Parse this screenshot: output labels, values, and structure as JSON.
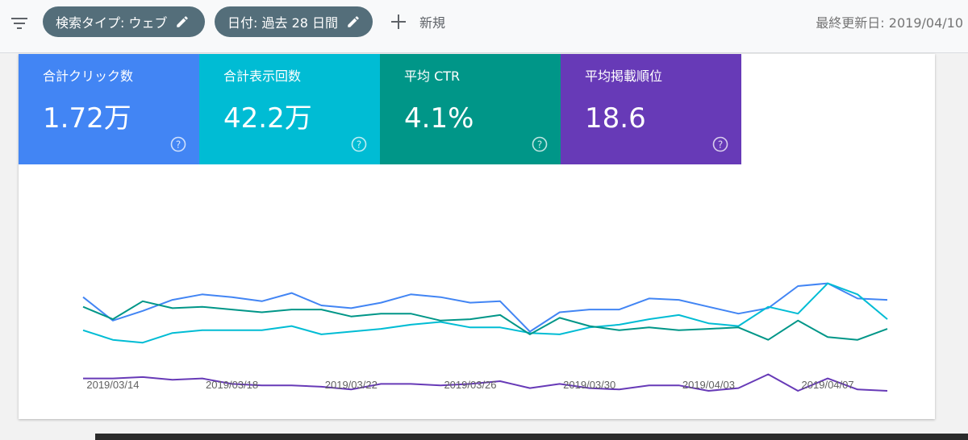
{
  "toolbar": {
    "filter_icon": "filter-list-icon",
    "chip_search_type": "検索タイプ: ウェブ",
    "chip_date": "日付: 過去 28 日間",
    "new_label": "新規",
    "last_updated": "最終更新日: 2019/04/10"
  },
  "metrics": [
    {
      "label": "合計クリック数",
      "value": "1.72万",
      "color": "#4285f4"
    },
    {
      "label": "合計表示回数",
      "value": "42.2万",
      "color": "#00bcd4"
    },
    {
      "label": "平均 CTR",
      "value": "4.1%",
      "color": "#009688"
    },
    {
      "label": "平均掲載順位",
      "value": "18.6",
      "color": "#673ab7"
    }
  ],
  "chart_data": {
    "type": "line",
    "x": [
      "2019/03/13",
      "2019/03/14",
      "2019/03/15",
      "2019/03/16",
      "2019/03/17",
      "2019/03/18",
      "2019/03/19",
      "2019/03/20",
      "2019/03/21",
      "2019/03/22",
      "2019/03/23",
      "2019/03/24",
      "2019/03/25",
      "2019/03/26",
      "2019/03/27",
      "2019/03/28",
      "2019/03/29",
      "2019/03/30",
      "2019/03/31",
      "2019/04/01",
      "2019/04/02",
      "2019/04/03",
      "2019/04/04",
      "2019/04/05",
      "2019/04/06",
      "2019/04/07",
      "2019/04/08",
      "2019/04/09"
    ],
    "tick_labels": [
      "2019/03/14",
      "2019/03/18",
      "2019/03/22",
      "2019/03/26",
      "2019/03/30",
      "2019/04/03",
      "2019/04/07"
    ],
    "ylim": [
      0,
      100
    ],
    "grid": false,
    "axis_note": "Relative scale; y values are normalized line heights since no y-axis is shown",
    "series": [
      {
        "color": "#4285f4",
        "values": [
          68,
          51,
          58,
          66,
          70,
          68,
          65,
          71,
          62,
          60,
          64,
          70,
          68,
          64,
          65,
          43,
          57,
          59,
          59,
          67,
          66,
          61,
          56,
          60,
          76,
          78,
          67,
          66
        ]
      },
      {
        "color": "#00bcd4",
        "values": [
          44,
          37,
          35,
          42,
          44,
          44,
          44,
          47,
          41,
          43,
          45,
          48,
          50,
          46,
          46,
          42,
          41,
          46,
          48,
          52,
          55,
          49,
          47,
          61,
          56,
          78,
          70,
          52
        ]
      },
      {
        "color": "#009688",
        "values": [
          61,
          52,
          65,
          60,
          61,
          59,
          57,
          59,
          59,
          54,
          56,
          56,
          51,
          52,
          55,
          41,
          53,
          47,
          44,
          46,
          44,
          45,
          46,
          37,
          51,
          39,
          37,
          45
        ]
      },
      {
        "color": "#673ab7",
        "values": [
          9,
          9,
          10,
          8,
          9,
          5,
          4,
          4,
          3,
          1,
          5,
          5,
          4,
          5,
          7,
          2,
          5,
          2,
          1,
          4,
          4,
          0,
          2,
          12,
          0,
          9,
          1,
          0
        ]
      }
    ]
  }
}
